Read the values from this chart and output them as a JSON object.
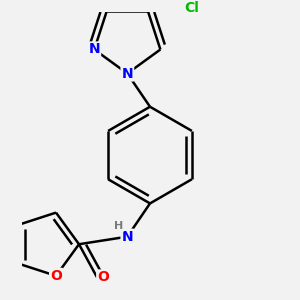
{
  "background_color": "#f2f2f2",
  "atom_colors": {
    "N": "#0000ff",
    "O": "#ff0000",
    "Cl": "#00bb00",
    "C": "#000000",
    "H": "#7a7a7a"
  },
  "bond_color": "#000000",
  "bond_width": 1.8,
  "font_size_atoms": 10,
  "font_size_small": 8,
  "figsize": [
    3.0,
    3.0
  ],
  "dpi": 100
}
